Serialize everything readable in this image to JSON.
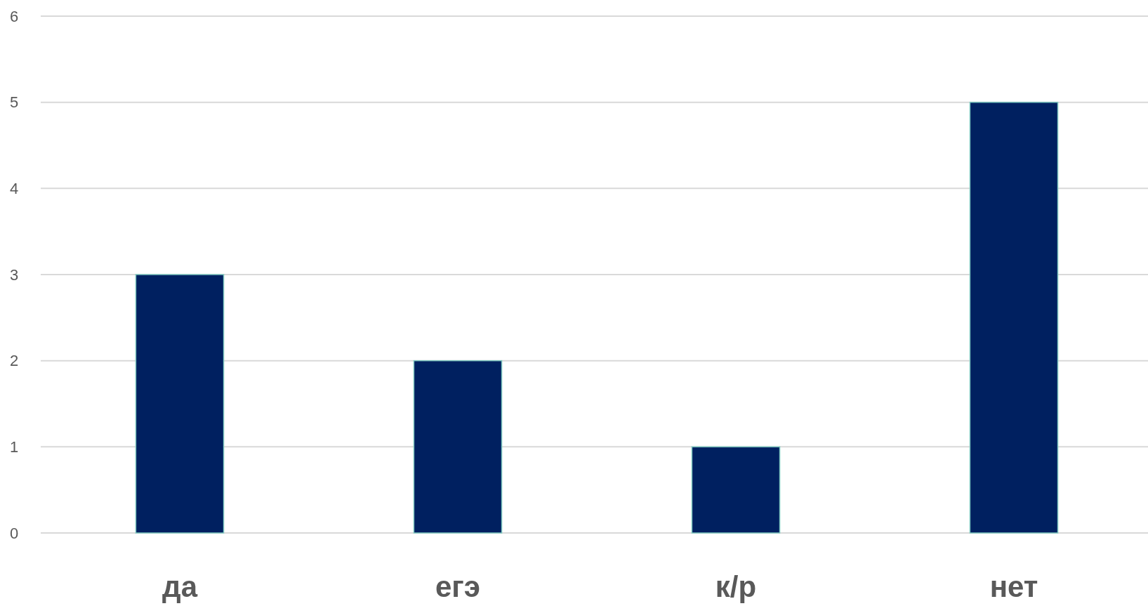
{
  "chart_data": {
    "type": "bar",
    "categories": [
      "да",
      "егэ",
      "к/р",
      "нет"
    ],
    "values": [
      3,
      2,
      1,
      5
    ],
    "color": "#002060",
    "ylim": [
      0,
      6
    ],
    "yticks": [
      0,
      1,
      2,
      3,
      4,
      5,
      6
    ],
    "grid": "y"
  }
}
